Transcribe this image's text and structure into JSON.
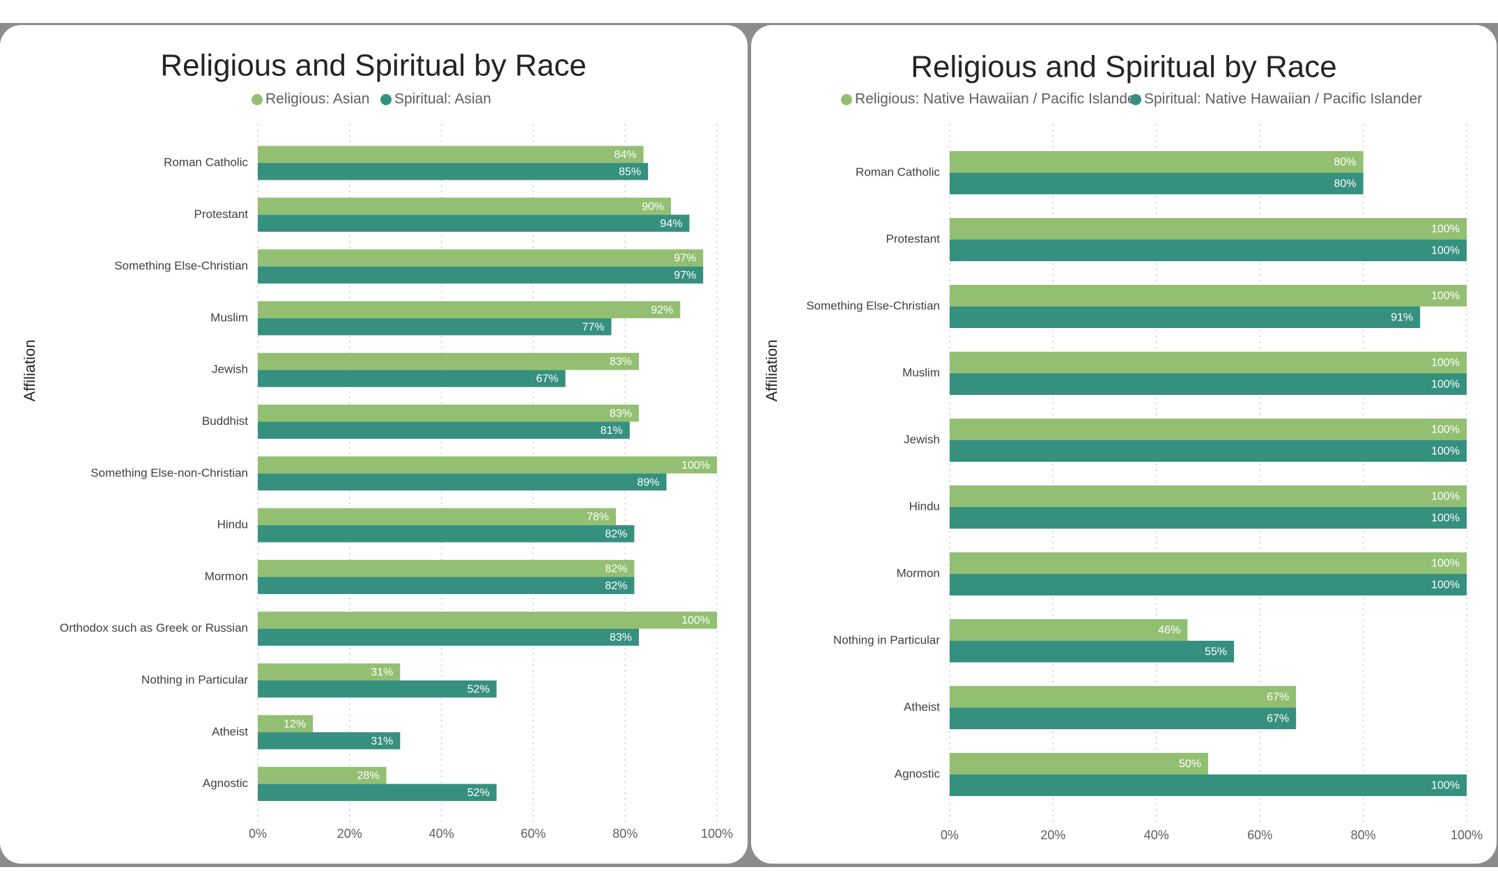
{
  "colors": {
    "religious": "#93bf73",
    "spiritual": "#36907f"
  },
  "chart_data": [
    {
      "type": "bar",
      "orientation": "horizontal",
      "title": "Religious and Spiritual by Race",
      "ylabel": "Affiliation",
      "xlabel": "",
      "xlim": [
        0,
        100
      ],
      "ticks": [
        "0%",
        "20%",
        "40%",
        "60%",
        "80%",
        "100%"
      ],
      "legend_position": "top-center",
      "grid": true,
      "categories": [
        "Roman Catholic",
        "Protestant",
        "Something Else-Christian",
        "Muslim",
        "Jewish",
        "Buddhist",
        "Something Else-non-Christian",
        "Hindu",
        "Mormon",
        "Orthodox such as Greek or Russian",
        "Nothing in Particular",
        "Atheist",
        "Agnostic"
      ],
      "series": [
        {
          "name": "Religious: Asian",
          "values": [
            84,
            90,
            97,
            92,
            83,
            83,
            100,
            78,
            82,
            100,
            31,
            12,
            28
          ]
        },
        {
          "name": "Spiritual: Asian",
          "values": [
            85,
            94,
            97,
            77,
            67,
            81,
            89,
            82,
            82,
            83,
            52,
            31,
            52
          ]
        }
      ]
    },
    {
      "type": "bar",
      "orientation": "horizontal",
      "title": "Religious and Spiritual by Race",
      "ylabel": "Affiliation",
      "xlabel": "",
      "xlim": [
        0,
        100
      ],
      "ticks": [
        "0%",
        "20%",
        "40%",
        "60%",
        "80%",
        "100%"
      ],
      "legend_position": "top-center",
      "grid": true,
      "categories": [
        "Roman Catholic",
        "Protestant",
        "Something Else-Christian",
        "Muslim",
        "Jewish",
        "Hindu",
        "Mormon",
        "Nothing in Particular",
        "Atheist",
        "Agnostic"
      ],
      "series": [
        {
          "name": "Religious: Native Hawaiian / Pacific Islander",
          "values": [
            80,
            100,
            100,
            100,
            100,
            100,
            100,
            46,
            67,
            50
          ]
        },
        {
          "name": "Spiritual: Native Hawaiian / Pacific Islander",
          "values": [
            80,
            100,
            91,
            100,
            100,
            100,
            100,
            55,
            67,
            100
          ]
        }
      ]
    }
  ]
}
